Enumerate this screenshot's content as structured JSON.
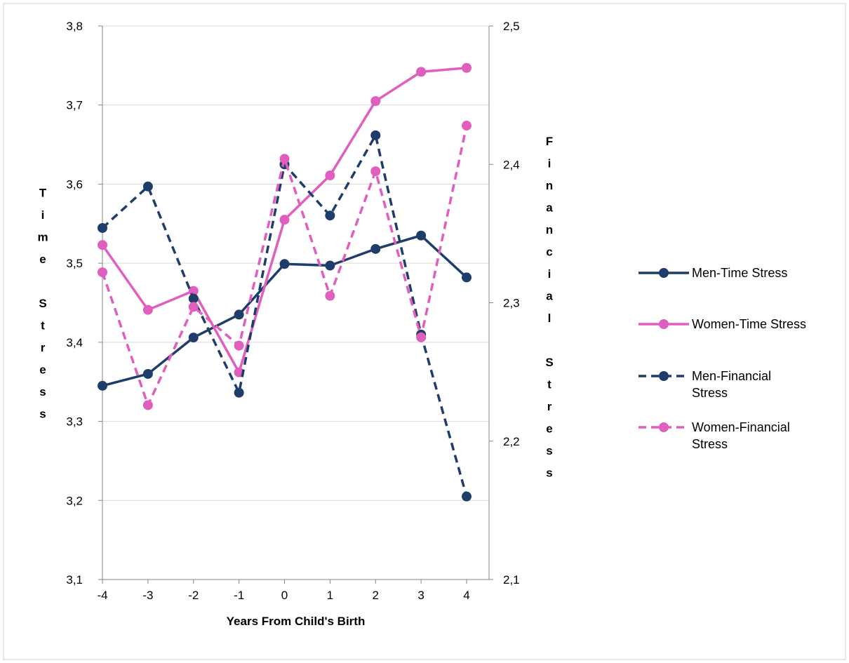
{
  "chart_data": {
    "type": "line",
    "x": [
      -4,
      -3,
      -2,
      -1,
      0,
      1,
      2,
      3,
      4
    ],
    "xlabel": "Years From Child's Birth",
    "ylabel": "Time Stress",
    "y2label": "Financial Stress",
    "ylim": [
      3.1,
      3.8
    ],
    "y2lim": [
      2.1,
      2.5
    ],
    "y_ticks": [
      "3,1",
      "3,2",
      "3,3",
      "3,4",
      "3,5",
      "3,6",
      "3,7",
      "3,8"
    ],
    "y2_ticks": [
      "2,1",
      "2,2",
      "2,3",
      "2,4",
      "2,5"
    ],
    "x_ticks": [
      "-4",
      "-3",
      "-2",
      "-1",
      "0",
      "1",
      "2",
      "3",
      "4"
    ],
    "grid": true,
    "legend_position": "right",
    "series": [
      {
        "name": "Men-Time Stress",
        "axis": "left",
        "style": "solid",
        "color": "#1f3d6b",
        "values": [
          3.345,
          3.36,
          3.406,
          3.435,
          3.499,
          3.497,
          3.518,
          3.535,
          3.482
        ]
      },
      {
        "name": "Women-Time Stress",
        "axis": "left",
        "style": "solid",
        "color": "#e05ebd",
        "values": [
          3.523,
          3.441,
          3.465,
          3.362,
          3.555,
          3.611,
          3.705,
          3.742,
          3.747
        ]
      },
      {
        "name": "Men-Financial Stress",
        "axis": "right",
        "style": "dashed",
        "color": "#1f3d6b",
        "values": [
          2.354,
          2.384,
          2.303,
          2.235,
          2.4,
          2.363,
          2.421,
          2.277,
          2.16
        ]
      },
      {
        "name": "Women-Financial Stress",
        "axis": "right",
        "style": "dashed",
        "color": "#e05ebd",
        "values": [
          2.322,
          2.226,
          2.297,
          2.269,
          2.404,
          2.305,
          2.395,
          2.275,
          2.428
        ]
      }
    ]
  }
}
